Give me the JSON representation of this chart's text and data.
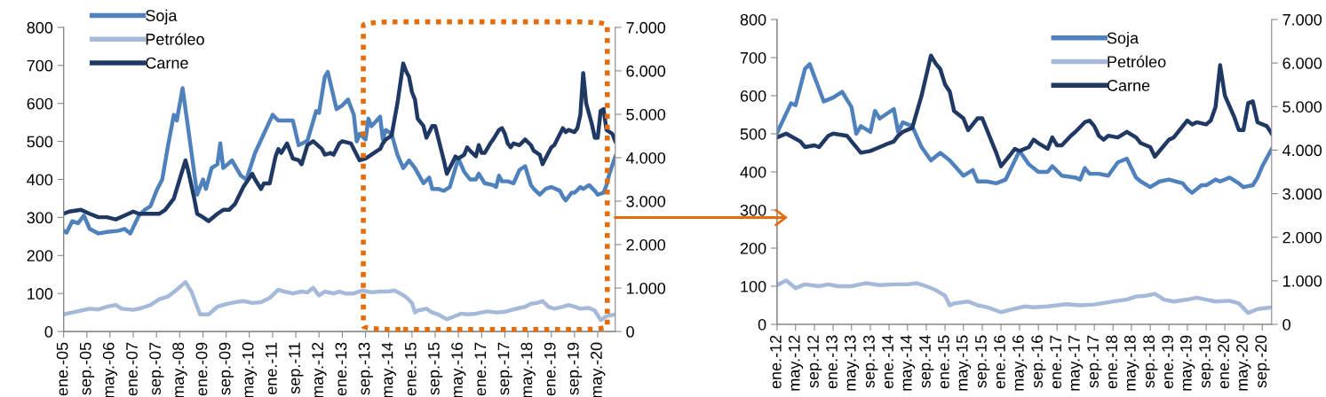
{
  "chart_data": [
    {
      "type": "line",
      "xlim": [
        "2005-01",
        "2020-11"
      ],
      "ylim": [
        0,
        800
      ],
      "yticks": [
        0,
        100,
        200,
        300,
        400,
        500,
        600,
        700,
        800
      ],
      "y2lim": [
        0,
        7000
      ],
      "y2ticks": [
        0,
        {
          "value": 1000,
          "label": "1.000"
        },
        {
          "value": 2000,
          "label": "2.000"
        },
        {
          "value": 3000,
          "label": "3.000"
        },
        {
          "value": 4000,
          "label": "4.000"
        },
        {
          "value": 5000,
          "label": "5.000"
        },
        {
          "value": 6000,
          "label": "6.000"
        },
        {
          "value": 7000,
          "label": "7.000"
        }
      ],
      "xticks": [
        {
          "value": "2005-01",
          "label": "ene.-05"
        },
        {
          "value": "2005-09",
          "label": "sep.-05"
        },
        {
          "value": "2006-05",
          "label": "may.-06"
        },
        {
          "value": "2007-01",
          "label": "ene.-07"
        },
        {
          "value": "2007-09",
          "label": "sep.-07"
        },
        {
          "value": "2008-05",
          "label": "may.-08"
        },
        {
          "value": "2009-01",
          "label": "ene.-09"
        },
        {
          "value": "2009-09",
          "label": "sep.-09"
        },
        {
          "value": "2010-05",
          "label": "may.-10"
        },
        {
          "value": "2011-01",
          "label": "ene.-11"
        },
        {
          "value": "2011-09",
          "label": "sep.-11"
        },
        {
          "value": "2012-05",
          "label": "may.-12"
        },
        {
          "value": "2013-01",
          "label": "ene.-13"
        },
        {
          "value": "2013-09",
          "label": "sep.-13"
        },
        {
          "value": "2014-05",
          "label": "may.-14"
        },
        {
          "value": "2015-01",
          "label": "ene.-15"
        },
        {
          "value": "2015-09",
          "label": "sep.-15"
        },
        {
          "value": "2016-05",
          "label": "may.-16"
        },
        {
          "value": "2017-01",
          "label": "ene.-17"
        },
        {
          "value": "2017-09",
          "label": "sep.-17"
        },
        {
          "value": "2018-05",
          "label": "may.-18"
        },
        {
          "value": "2019-01",
          "label": "ene.-19"
        },
        {
          "value": "2019-09",
          "label": "sep.-19"
        },
        {
          "value": "2020-05",
          "label": "may.-20"
        }
      ],
      "legend": "top left",
      "grid": false,
      "series": [
        {
          "name": "Soja",
          "color": "#4f81bd",
          "x": [
            "2005-01",
            "2005-02",
            "2005-04",
            "2005-06",
            "2005-08",
            "2005-10",
            "2006-01",
            "2006-04",
            "2006-08",
            "2006-10",
            "2006-12",
            "2007-03",
            "2007-05",
            "2007-07",
            "2007-09",
            "2007-11",
            "2008-01",
            "2008-03",
            "2008-04",
            "2008-06",
            "2008-08",
            "2008-11",
            "2009-01",
            "2009-02",
            "2009-04",
            "2009-06",
            "2009-07",
            "2009-08",
            "2009-11",
            "2010-02",
            "2010-04",
            "2010-07",
            "2010-10",
            "2011-01",
            "2011-03",
            "2011-08",
            "2011-10",
            "2012-01",
            "2012-04",
            "2012-05",
            "2012-07",
            "2012-08",
            "2012-09",
            "2012-11",
            "2013-01",
            "2013-03",
            "2013-05",
            "2013-06",
            "2013-07",
            "2013-09",
            "2013-10",
            "2013-11",
            "2014-02",
            "2014-03",
            "2014-04",
            "2014-06",
            "2014-08",
            "2014-10",
            "2014-12",
            "2015-02",
            "2015-05",
            "2015-07",
            "2015-08",
            "2015-10",
            "2015-12",
            "2016-02",
            "2016-05",
            "2016-07",
            "2016-09",
            "2016-11",
            "2016-12",
            "2017-02",
            "2017-05",
            "2017-06",
            "2017-07",
            "2017-08",
            "2017-10",
            "2017-12",
            "2018-02",
            "2018-04",
            "2018-06",
            "2018-07",
            "2018-09",
            "2018-11",
            "2019-01",
            "2019-04",
            "2019-05",
            "2019-06",
            "2019-08",
            "2019-09",
            "2019-11",
            "2019-12",
            "2020-02",
            "2020-04",
            "2020-05",
            "2020-07",
            "2020-08",
            "2020-09",
            "2020-11"
          ],
          "values": [
            265,
            260,
            290,
            285,
            305,
            270,
            258,
            262,
            265,
            270,
            258,
            305,
            320,
            330,
            370,
            400,
            490,
            570,
            555,
            640,
            530,
            360,
            400,
            375,
            430,
            440,
            495,
            430,
            450,
            410,
            400,
            470,
            520,
            570,
            555,
            555,
            490,
            502,
            580,
            575,
            670,
            683,
            650,
            585,
            595,
            610,
            570,
            500,
            520,
            505,
            560,
            540,
            565,
            505,
            530,
            520,
            465,
            430,
            450,
            430,
            390,
            405,
            375,
            375,
            370,
            380,
            455,
            420,
            400,
            400,
            415,
            390,
            385,
            380,
            410,
            395,
            395,
            390,
            425,
            435,
            385,
            375,
            360,
            375,
            380,
            370,
            355,
            345,
            365,
            365,
            380,
            375,
            385,
            370,
            360,
            365,
            385,
            415,
            460
          ]
        },
        {
          "name": "Petróleo",
          "color": "#a5b9d9",
          "x": [
            "2005-01",
            "2005-04",
            "2005-07",
            "2005-10",
            "2006-01",
            "2006-04",
            "2006-07",
            "2006-09",
            "2007-01",
            "2007-04",
            "2007-07",
            "2007-10",
            "2008-01",
            "2008-04",
            "2008-07",
            "2008-09",
            "2008-12",
            "2009-03",
            "2009-06",
            "2009-09",
            "2009-12",
            "2010-03",
            "2010-06",
            "2010-09",
            "2010-12",
            "2011-03",
            "2011-05",
            "2011-08",
            "2011-11",
            "2012-01",
            "2012-03",
            "2012-05",
            "2012-07",
            "2012-10",
            "2012-12",
            "2013-02",
            "2013-05",
            "2013-08",
            "2013-11",
            "2014-02",
            "2014-05",
            "2014-07",
            "2014-09",
            "2014-11",
            "2015-01",
            "2015-02",
            "2015-03",
            "2015-06",
            "2015-08",
            "2015-10",
            "2016-01",
            "2016-03",
            "2016-06",
            "2016-08",
            "2016-11",
            "2017-01",
            "2017-03",
            "2017-06",
            "2017-09",
            "2017-12",
            "2018-02",
            "2018-04",
            "2018-06",
            "2018-08",
            "2018-10",
            "2018-12",
            "2019-02",
            "2019-05",
            "2019-07",
            "2019-09",
            "2019-11",
            "2020-02",
            "2020-04",
            "2020-06",
            "2020-08",
            "2020-11"
          ],
          "values": [
            45,
            50,
            55,
            60,
            58,
            65,
            70,
            60,
            57,
            62,
            70,
            85,
            92,
            110,
            130,
            105,
            45,
            45,
            65,
            72,
            77,
            80,
            75,
            77,
            88,
            110,
            105,
            100,
            105,
            103,
            115,
            95,
            105,
            100,
            105,
            100,
            100,
            108,
            103,
            105,
            105,
            108,
            100,
            90,
            75,
            50,
            55,
            60,
            50,
            45,
            32,
            38,
            47,
            45,
            47,
            50,
            53,
            50,
            52,
            58,
            62,
            65,
            73,
            75,
            80,
            65,
            60,
            65,
            70,
            65,
            60,
            62,
            55,
            30,
            40,
            45
          ]
        },
        {
          "name": "Carne",
          "color": "#1f3864",
          "axis": "y2",
          "x": [
            "2005-01",
            "2005-03",
            "2005-07",
            "2005-10",
            "2006-01",
            "2006-04",
            "2006-07",
            "2006-10",
            "2007-01",
            "2007-03",
            "2007-07",
            "2007-10",
            "2007-12",
            "2008-03",
            "2008-05",
            "2008-07",
            "2008-08",
            "2008-10",
            "2008-11",
            "2009-01",
            "2009-03",
            "2009-06",
            "2009-08",
            "2009-10",
            "2009-12",
            "2010-03",
            "2010-06",
            "2010-07",
            "2010-09",
            "2010-10",
            "2010-12",
            "2011-02",
            "2011-03",
            "2011-04",
            "2011-06",
            "2011-08",
            "2011-10",
            "2011-11",
            "2012-01",
            "2012-03",
            "2012-06",
            "2012-07",
            "2012-09",
            "2012-10",
            "2012-12",
            "2013-01",
            "2013-04",
            "2013-05",
            "2013-07",
            "2013-09",
            "2013-11",
            "2014-01",
            "2014-02",
            "2014-03",
            "2014-04",
            "2014-06",
            "2014-08",
            "2014-10",
            "2014-11",
            "2014-12",
            "2015-01",
            "2015-02",
            "2015-03",
            "2015-05",
            "2015-06",
            "2015-08",
            "2015-09",
            "2015-11",
            "2015-12",
            "2016-01",
            "2016-03",
            "2016-04",
            "2016-05",
            "2016-07",
            "2016-08",
            "2016-09",
            "2016-11",
            "2016-12",
            "2017-01",
            "2017-02",
            "2017-04",
            "2017-05",
            "2017-07",
            "2017-08",
            "2017-09",
            "2017-10",
            "2017-11",
            "2017-12",
            "2018-02",
            "2018-04",
            "2018-06",
            "2018-07",
            "2018-09",
            "2018-10",
            "2018-12",
            "2019-01",
            "2019-02",
            "2019-05",
            "2019-06",
            "2019-07",
            "2019-09",
            "2019-10",
            "2019-11",
            "2019-12",
            "2020-01",
            "2020-03",
            "2020-04",
            "2020-05",
            "2020-06",
            "2020-07",
            "2020-08",
            "2020-10",
            "2020-11"
          ],
          "values": [
            2710,
            2760,
            2800,
            2710,
            2630,
            2630,
            2580,
            2670,
            2760,
            2710,
            2710,
            2710,
            2800,
            3060,
            3500,
            3940,
            3680,
            3060,
            2710,
            2630,
            2540,
            2710,
            2800,
            2800,
            2930,
            3330,
            3630,
            3500,
            3280,
            3410,
            3410,
            4030,
            4200,
            4110,
            4330,
            3980,
            3940,
            3850,
            4290,
            4380,
            4200,
            4070,
            4110,
            4070,
            4330,
            4380,
            4330,
            4200,
            3940,
            3980,
            4070,
            4160,
            4200,
            4330,
            4420,
            4510,
            5250,
            6170,
            5990,
            5860,
            5510,
            5340,
            4900,
            4730,
            4460,
            4730,
            4730,
            4200,
            3940,
            3630,
            3890,
            4030,
            3980,
            4070,
            4240,
            4160,
            4030,
            4290,
            4110,
            4110,
            4330,
            4420,
            4640,
            4680,
            4550,
            4330,
            4240,
            4330,
            4290,
            4420,
            4290,
            4160,
            4070,
            3850,
            4110,
            4240,
            4290,
            4680,
            4590,
            4640,
            4590,
            4680,
            4990,
            5950,
            5250,
            4770,
            4460,
            4460,
            5080,
            5120,
            4640,
            4550,
            4380
          ]
        }
      ]
    },
    {
      "type": "line",
      "xlim": [
        "2012-01",
        "2020-11"
      ],
      "ylim": [
        0,
        800
      ],
      "yticks": [
        0,
        100,
        200,
        300,
        400,
        500,
        600,
        700,
        800
      ],
      "y2lim": [
        0,
        7000
      ],
      "y2ticks": [
        0,
        {
          "value": 1000,
          "label": "1.000"
        },
        {
          "value": 2000,
          "label": "2.000"
        },
        {
          "value": 3000,
          "label": "3.000"
        },
        {
          "value": 4000,
          "label": "4.000"
        },
        {
          "value": 5000,
          "label": "5.000"
        },
        {
          "value": 6000,
          "label": "6.000"
        },
        {
          "value": 7000,
          "label": "7.000"
        }
      ],
      "xticks": [
        {
          "value": "2012-01",
          "label": "ene.-12"
        },
        {
          "value": "2012-05",
          "label": "may.-12"
        },
        {
          "value": "2012-09",
          "label": "sep.-12"
        },
        {
          "value": "2013-01",
          "label": "ene.-13"
        },
        {
          "value": "2013-05",
          "label": "may.-13"
        },
        {
          "value": "2013-09",
          "label": "sep.-13"
        },
        {
          "value": "2014-01",
          "label": "ene.-14"
        },
        {
          "value": "2014-05",
          "label": "may.-14"
        },
        {
          "value": "2014-09",
          "label": "sep.-14"
        },
        {
          "value": "2015-01",
          "label": "ene.-15"
        },
        {
          "value": "2015-05",
          "label": "may.-15"
        },
        {
          "value": "2015-09",
          "label": "sep.-15"
        },
        {
          "value": "2016-01",
          "label": "ene.-16"
        },
        {
          "value": "2016-05",
          "label": "may.-16"
        },
        {
          "value": "2016-09",
          "label": "sep.-16"
        },
        {
          "value": "2017-01",
          "label": "ene.-17"
        },
        {
          "value": "2017-05",
          "label": "may.-17"
        },
        {
          "value": "2017-09",
          "label": "sep.-17"
        },
        {
          "value": "2018-01",
          "label": "ene.-18"
        },
        {
          "value": "2018-05",
          "label": "may.-18"
        },
        {
          "value": "2018-09",
          "label": "sep.-18"
        },
        {
          "value": "2019-01",
          "label": "ene.-19"
        },
        {
          "value": "2019-05",
          "label": "may.-19"
        },
        {
          "value": "2019-09",
          "label": "sep.-19"
        },
        {
          "value": "2020-01",
          "label": "ene.-20"
        },
        {
          "value": "2020-05",
          "label": "may.-20"
        },
        {
          "value": "2020-09",
          "label": "sep.-20"
        }
      ],
      "legend": "top right",
      "grid": false,
      "series": [
        {
          "name": "Soja",
          "color": "#4f81bd",
          "x": [
            "2012-01",
            "2012-04",
            "2012-05",
            "2012-07",
            "2012-08",
            "2012-09",
            "2012-11",
            "2013-01",
            "2013-03",
            "2013-05",
            "2013-06",
            "2013-07",
            "2013-09",
            "2013-10",
            "2013-11",
            "2014-02",
            "2014-03",
            "2014-04",
            "2014-06",
            "2014-08",
            "2014-10",
            "2014-12",
            "2015-02",
            "2015-05",
            "2015-07",
            "2015-08",
            "2015-10",
            "2015-12",
            "2016-02",
            "2016-05",
            "2016-07",
            "2016-09",
            "2016-11",
            "2016-12",
            "2017-02",
            "2017-05",
            "2017-06",
            "2017-07",
            "2017-08",
            "2017-10",
            "2017-12",
            "2018-02",
            "2018-04",
            "2018-06",
            "2018-07",
            "2018-09",
            "2018-11",
            "2019-01",
            "2019-04",
            "2019-05",
            "2019-06",
            "2019-08",
            "2019-09",
            "2019-11",
            "2019-12",
            "2020-02",
            "2020-04",
            "2020-05",
            "2020-07",
            "2020-08",
            "2020-09",
            "2020-11"
          ],
          "values": [
            502,
            580,
            575,
            670,
            683,
            650,
            585,
            595,
            610,
            570,
            500,
            520,
            505,
            560,
            540,
            565,
            505,
            530,
            520,
            465,
            430,
            450,
            430,
            390,
            405,
            375,
            375,
            370,
            380,
            455,
            420,
            400,
            400,
            415,
            390,
            385,
            380,
            410,
            395,
            395,
            390,
            425,
            435,
            385,
            375,
            360,
            375,
            380,
            370,
            355,
            345,
            365,
            365,
            380,
            375,
            385,
            370,
            360,
            365,
            385,
            415,
            460
          ]
        },
        {
          "name": "Petróleo",
          "color": "#a5b9d9",
          "x": [
            "2012-01",
            "2012-03",
            "2012-05",
            "2012-07",
            "2012-10",
            "2012-12",
            "2013-02",
            "2013-05",
            "2013-08",
            "2013-11",
            "2014-02",
            "2014-05",
            "2014-07",
            "2014-09",
            "2014-11",
            "2015-01",
            "2015-02",
            "2015-03",
            "2015-06",
            "2015-08",
            "2015-10",
            "2016-01",
            "2016-03",
            "2016-06",
            "2016-08",
            "2016-11",
            "2017-01",
            "2017-03",
            "2017-06",
            "2017-09",
            "2017-12",
            "2018-02",
            "2018-04",
            "2018-06",
            "2018-08",
            "2018-10",
            "2018-12",
            "2019-02",
            "2019-05",
            "2019-07",
            "2019-09",
            "2019-11",
            "2020-02",
            "2020-04",
            "2020-06",
            "2020-08",
            "2020-11"
          ],
          "values": [
            103,
            115,
            95,
            105,
            100,
            105,
            100,
            100,
            108,
            103,
            105,
            105,
            108,
            100,
            90,
            75,
            50,
            55,
            60,
            50,
            45,
            32,
            38,
            47,
            45,
            47,
            50,
            53,
            50,
            52,
            58,
            62,
            65,
            73,
            75,
            80,
            65,
            60,
            65,
            70,
            65,
            60,
            62,
            55,
            30,
            40,
            45
          ]
        },
        {
          "name": "Carne",
          "color": "#1f3864",
          "axis": "y2",
          "x": [
            "2012-01",
            "2012-03",
            "2012-06",
            "2012-07",
            "2012-09",
            "2012-10",
            "2012-12",
            "2013-01",
            "2013-04",
            "2013-05",
            "2013-07",
            "2013-09",
            "2013-11",
            "2014-01",
            "2014-02",
            "2014-03",
            "2014-04",
            "2014-06",
            "2014-08",
            "2014-10",
            "2014-11",
            "2014-12",
            "2015-01",
            "2015-02",
            "2015-03",
            "2015-05",
            "2015-06",
            "2015-08",
            "2015-09",
            "2015-11",
            "2015-12",
            "2016-01",
            "2016-03",
            "2016-04",
            "2016-05",
            "2016-07",
            "2016-08",
            "2016-09",
            "2016-11",
            "2016-12",
            "2017-01",
            "2017-02",
            "2017-04",
            "2017-05",
            "2017-07",
            "2017-08",
            "2017-09",
            "2017-10",
            "2017-11",
            "2017-12",
            "2018-02",
            "2018-04",
            "2018-06",
            "2018-07",
            "2018-09",
            "2018-10",
            "2018-12",
            "2019-01",
            "2019-02",
            "2019-05",
            "2019-06",
            "2019-07",
            "2019-09",
            "2019-10",
            "2019-11",
            "2019-12",
            "2020-01",
            "2020-03",
            "2020-04",
            "2020-05",
            "2020-06",
            "2020-07",
            "2020-08",
            "2020-10",
            "2020-11"
          ],
          "values": [
            4290,
            4380,
            4200,
            4070,
            4110,
            4070,
            4330,
            4380,
            4330,
            4200,
            3940,
            3980,
            4070,
            4160,
            4200,
            4330,
            4420,
            4510,
            5250,
            6170,
            5990,
            5860,
            5510,
            5340,
            4900,
            4730,
            4460,
            4730,
            4730,
            4200,
            3940,
            3630,
            3890,
            4030,
            3980,
            4070,
            4240,
            4160,
            4030,
            4290,
            4110,
            4110,
            4330,
            4420,
            4640,
            4680,
            4550,
            4330,
            4240,
            4330,
            4290,
            4420,
            4290,
            4160,
            4070,
            3850,
            4110,
            4240,
            4290,
            4680,
            4590,
            4640,
            4590,
            4680,
            4990,
            5950,
            5250,
            4770,
            4460,
            4460,
            5080,
            5120,
            4640,
            4550,
            4380
          ]
        }
      ]
    }
  ]
}
